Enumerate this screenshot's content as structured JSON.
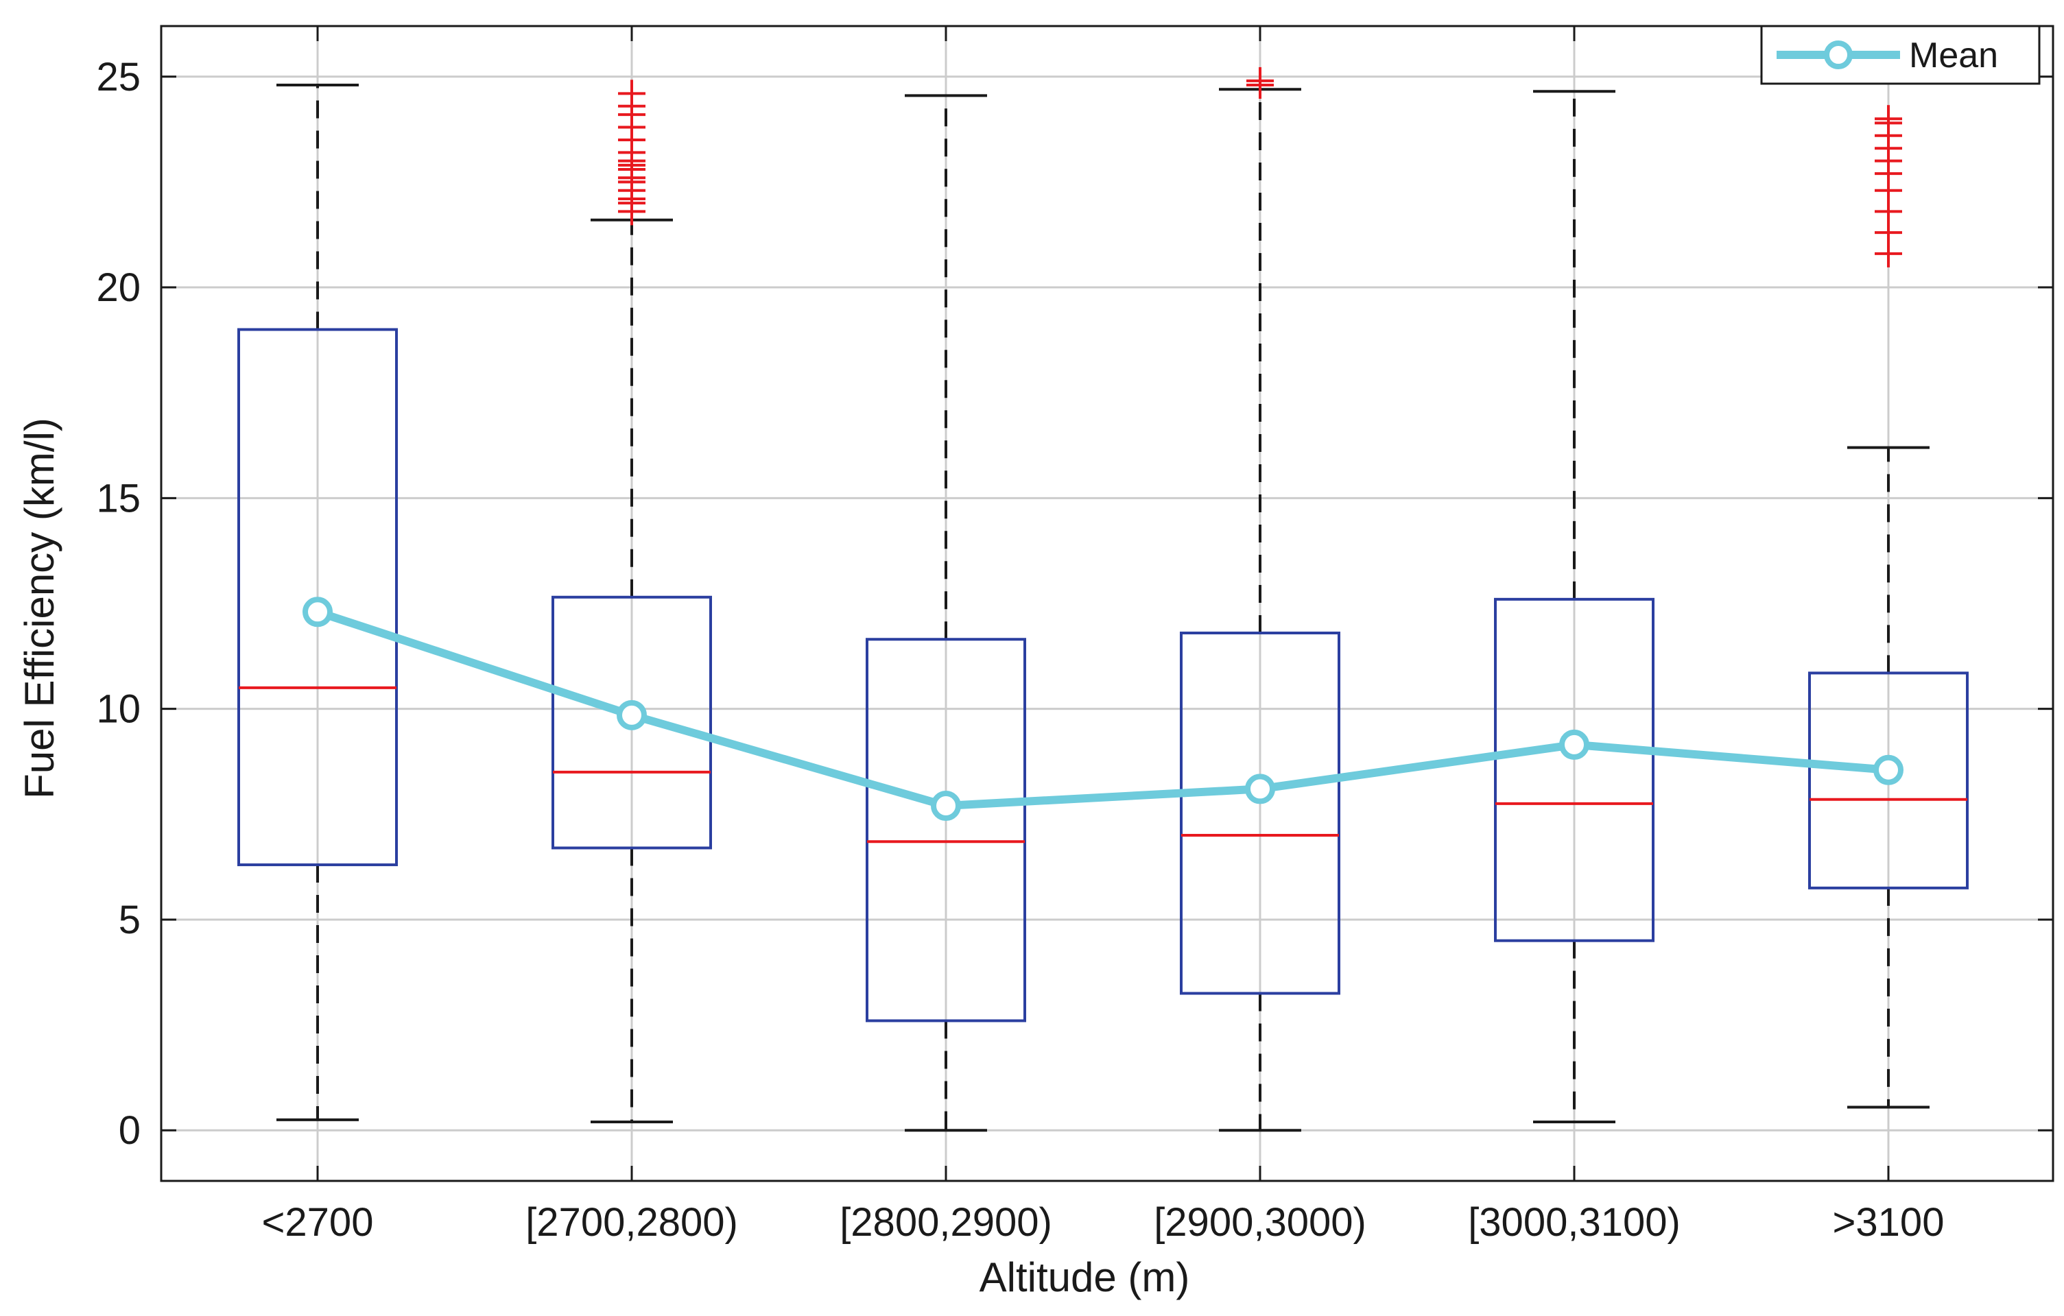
{
  "chart_data": {
    "type": "box",
    "title": "",
    "xlabel": "Altitude (m)",
    "ylabel": "Fuel Efficiency (km/l)",
    "ylim": [
      -1.2,
      26.2
    ],
    "yticks": [
      0,
      5,
      10,
      15,
      20,
      25
    ],
    "grid": true,
    "categories": [
      "<2700",
      "[2700,2800)",
      "[2800,2900)",
      "[2900,3000)",
      "[3000,3100)",
      ">3100"
    ],
    "boxes": [
      {
        "whisker_low": 0.25,
        "q1": 6.3,
        "median": 10.5,
        "q3": 19.0,
        "whisker_high": 24.8,
        "outliers": []
      },
      {
        "whisker_low": 0.2,
        "q1": 6.7,
        "median": 8.5,
        "q3": 12.65,
        "whisker_high": 21.6,
        "outliers": [
          21.8,
          22.0,
          22.1,
          22.3,
          22.5,
          22.6,
          22.8,
          22.9,
          23.0,
          23.2,
          23.5,
          23.8,
          24.1,
          24.3,
          24.6
        ]
      },
      {
        "whisker_low": 0.0,
        "q1": 2.6,
        "median": 6.85,
        "q3": 11.65,
        "whisker_high": 24.55,
        "outliers": []
      },
      {
        "whisker_low": 0.0,
        "q1": 3.25,
        "median": 7.0,
        "q3": 11.8,
        "whisker_high": 24.7,
        "outliers": [
          24.8,
          24.9
        ]
      },
      {
        "whisker_low": 0.2,
        "q1": 4.5,
        "median": 7.75,
        "q3": 12.6,
        "whisker_high": 24.65,
        "outliers": []
      },
      {
        "whisker_low": 0.55,
        "q1": 5.75,
        "median": 7.85,
        "q3": 10.85,
        "whisker_high": 16.2,
        "outliers": [
          20.8,
          21.3,
          21.8,
          22.3,
          22.7,
          23.0,
          23.3,
          23.6,
          23.9,
          24.0
        ]
      }
    ],
    "series": [
      {
        "name": "Mean",
        "values": [
          12.3,
          9.85,
          7.7,
          8.1,
          9.15,
          8.55
        ],
        "color": "#6ecbdc",
        "marker": "circle"
      }
    ],
    "legend": {
      "position": "top-right",
      "entries": [
        "Mean"
      ]
    },
    "colors": {
      "box": "#2b3fa0",
      "median": "#e8191f",
      "outlier": "#e8191f",
      "whisker": "#1a1a1a",
      "mean": "#6ecbdc",
      "grid": "#cccccc"
    }
  }
}
